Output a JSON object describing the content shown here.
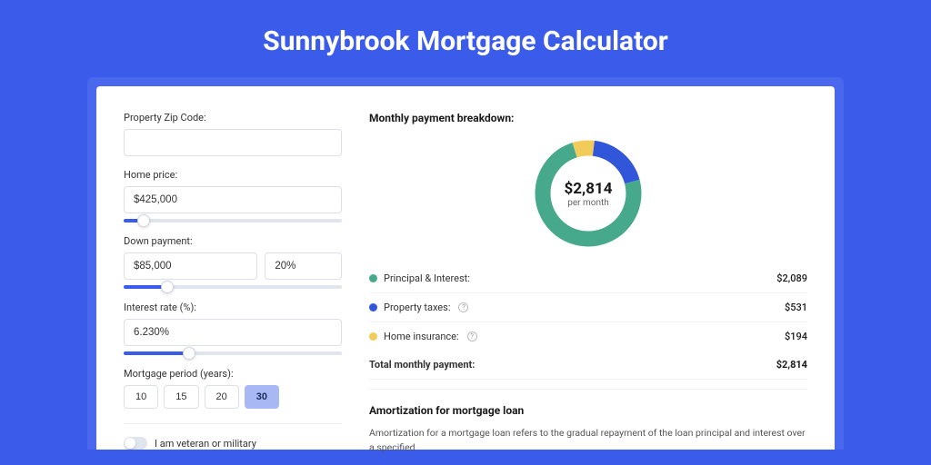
{
  "page": {
    "title": "Sunnybrook Mortgage Calculator",
    "background_color": "#3b5beb",
    "card_outer_color": "#4a68ed",
    "card_color": "#ffffff"
  },
  "form": {
    "zip": {
      "label": "Property Zip Code:",
      "value": ""
    },
    "home_price": {
      "label": "Home price:",
      "value": "$425,000",
      "slider_fill_pct": 9
    },
    "down_payment": {
      "label": "Down payment:",
      "value": "$85,000",
      "percent": "20%",
      "slider_fill_pct": 20
    },
    "interest_rate": {
      "label": "Interest rate (%):",
      "value": "6.230%",
      "slider_fill_pct": 30
    },
    "period": {
      "label": "Mortgage period (years):",
      "options": [
        "10",
        "15",
        "20",
        "30"
      ],
      "active_index": 3,
      "active_bg": "#a7b8f5"
    },
    "veteran": {
      "label": "I am veteran or military",
      "on": false
    }
  },
  "breakdown": {
    "title": "Monthly payment breakdown:",
    "donut": {
      "amount": "$2,814",
      "sublabel": "per month",
      "type": "donut",
      "stroke_width": 17,
      "segments": [
        {
          "label": "Principal & Interest:",
          "value": "$2,089",
          "color": "#46a98b",
          "fraction": 0.742
        },
        {
          "label": "Property taxes:",
          "value": "$531",
          "color": "#3156d9",
          "fraction": 0.189,
          "info": true
        },
        {
          "label": "Home insurance:",
          "value": "$194",
          "color": "#f2cc5b",
          "fraction": 0.069,
          "info": true
        }
      ]
    },
    "total": {
      "label": "Total monthly payment:",
      "value": "$2,814"
    }
  },
  "amortization": {
    "title": "Amortization for mortgage loan",
    "text": "Amortization for a mortgage loan refers to the gradual repayment of the loan principal and interest over a specified"
  }
}
